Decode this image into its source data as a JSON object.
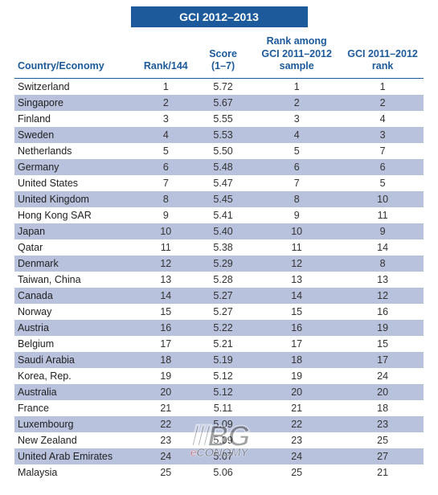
{
  "title": "GCI 2012–2013",
  "header_color": "#1c5a9c",
  "stripe_color": "#b8c2dd",
  "text_color": "#333333",
  "columns": [
    {
      "key": "country",
      "label": "Country/Economy",
      "align": "left"
    },
    {
      "key": "rank",
      "label": "Rank/144",
      "align": "center"
    },
    {
      "key": "score",
      "label": "Score\n(1–7)",
      "align": "center"
    },
    {
      "key": "rank_among",
      "label": "Rank among\nGCI 2011–2012\nsample",
      "align": "center"
    },
    {
      "key": "prev_rank",
      "label": "GCI 2011–2012\nrank",
      "align": "center"
    }
  ],
  "rows": [
    {
      "country": "Switzerland",
      "rank": 1,
      "score": "5.72",
      "rank_among": 1,
      "prev_rank": 1
    },
    {
      "country": "Singapore",
      "rank": 2,
      "score": "5.67",
      "rank_among": 2,
      "prev_rank": 2
    },
    {
      "country": "Finland",
      "rank": 3,
      "score": "5.55",
      "rank_among": 3,
      "prev_rank": 4
    },
    {
      "country": "Sweden",
      "rank": 4,
      "score": "5.53",
      "rank_among": 4,
      "prev_rank": 3
    },
    {
      "country": "Netherlands",
      "rank": 5,
      "score": "5.50",
      "rank_among": 5,
      "prev_rank": 7
    },
    {
      "country": "Germany",
      "rank": 6,
      "score": "5.48",
      "rank_among": 6,
      "prev_rank": 6
    },
    {
      "country": "United States",
      "rank": 7,
      "score": "5.47",
      "rank_among": 7,
      "prev_rank": 5
    },
    {
      "country": "United Kingdom",
      "rank": 8,
      "score": "5.45",
      "rank_among": 8,
      "prev_rank": 10
    },
    {
      "country": "Hong Kong SAR",
      "rank": 9,
      "score": "5.41",
      "rank_among": 9,
      "prev_rank": 11
    },
    {
      "country": "Japan",
      "rank": 10,
      "score": "5.40",
      "rank_among": 10,
      "prev_rank": 9
    },
    {
      "country": "Qatar",
      "rank": 11,
      "score": "5.38",
      "rank_among": 11,
      "prev_rank": 14
    },
    {
      "country": "Denmark",
      "rank": 12,
      "score": "5.29",
      "rank_among": 12,
      "prev_rank": 8
    },
    {
      "country": "Taiwan, China",
      "rank": 13,
      "score": "5.28",
      "rank_among": 13,
      "prev_rank": 13
    },
    {
      "country": "Canada",
      "rank": 14,
      "score": "5.27",
      "rank_among": 14,
      "prev_rank": 12
    },
    {
      "country": "Norway",
      "rank": 15,
      "score": "5.27",
      "rank_among": 15,
      "prev_rank": 16
    },
    {
      "country": "Austria",
      "rank": 16,
      "score": "5.22",
      "rank_among": 16,
      "prev_rank": 19
    },
    {
      "country": "Belgium",
      "rank": 17,
      "score": "5.21",
      "rank_among": 17,
      "prev_rank": 15
    },
    {
      "country": "Saudi Arabia",
      "rank": 18,
      "score": "5.19",
      "rank_among": 18,
      "prev_rank": 17
    },
    {
      "country": "Korea, Rep.",
      "rank": 19,
      "score": "5.12",
      "rank_among": 19,
      "prev_rank": 24
    },
    {
      "country": "Australia",
      "rank": 20,
      "score": "5.12",
      "rank_among": 20,
      "prev_rank": 20
    },
    {
      "country": "France",
      "rank": 21,
      "score": "5.11",
      "rank_among": 21,
      "prev_rank": 18
    },
    {
      "country": "Luxembourg",
      "rank": 22,
      "score": "5.09",
      "rank_among": 22,
      "prev_rank": 23
    },
    {
      "country": "New Zealand",
      "rank": 23,
      "score": "5.09",
      "rank_among": 23,
      "prev_rank": 25
    },
    {
      "country": "United Arab Emirates",
      "rank": 24,
      "score": "5.07",
      "rank_among": 24,
      "prev_rank": 27
    },
    {
      "country": "Malaysia",
      "rank": 25,
      "score": "5.06",
      "rank_among": 25,
      "prev_rank": 21
    }
  ],
  "watermark": {
    "top": "ⅢBG",
    "bottom_e": "e",
    "bottom_rest": "CONOMY"
  }
}
